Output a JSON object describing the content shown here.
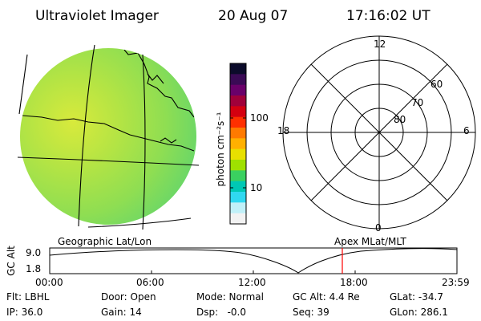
{
  "header": {
    "title": "Ultraviolet Imager",
    "date": "20 Aug 07",
    "time": "17:16:02 UT"
  },
  "colorbar": {
    "label": "photon cm⁻²s⁻¹",
    "ticks": [
      "100",
      "10"
    ],
    "colors": [
      "#0b0b2a",
      "#3a0a55",
      "#6a006a",
      "#a0003a",
      "#d40010",
      "#ff3000",
      "#ff7a00",
      "#ffb000",
      "#e8e000",
      "#9fe000",
      "#3ad060",
      "#00c8b4",
      "#30d8f0",
      "#c0f0f8",
      "#f2f2f2"
    ]
  },
  "image_panel": {
    "caption": "Geographic Lat/Lon",
    "fill_colors": [
      "#d8ea3c",
      "#b4e444",
      "#8fde52",
      "#66d66a"
    ]
  },
  "polar_panel": {
    "caption": "Apex MLat/MLT",
    "mlt_labels": {
      "top": "12",
      "left": "18",
      "right": "6",
      "bottom": "0"
    },
    "lat_labels": [
      "60",
      "70",
      "80"
    ]
  },
  "altitude_plot": {
    "ylabel": "GC Alt",
    "y_ticks": [
      "9.0",
      "1.8"
    ],
    "x_ticks": [
      "00:00",
      "06:00",
      "12:00",
      "18:00",
      "23:59"
    ],
    "marker_color": "#ff0000",
    "marker_time": "17:16"
  },
  "footer": {
    "row1": [
      "Flt: LBHL",
      "Door: Open",
      "Mode: Normal",
      "GC Alt: 4.4 Re",
      "GLat: -34.7"
    ],
    "row2": [
      "IP: 36.0",
      "Gain: 14",
      "Dsp:   -0.0",
      "Seq: 39",
      "GLon: 286.1"
    ]
  }
}
